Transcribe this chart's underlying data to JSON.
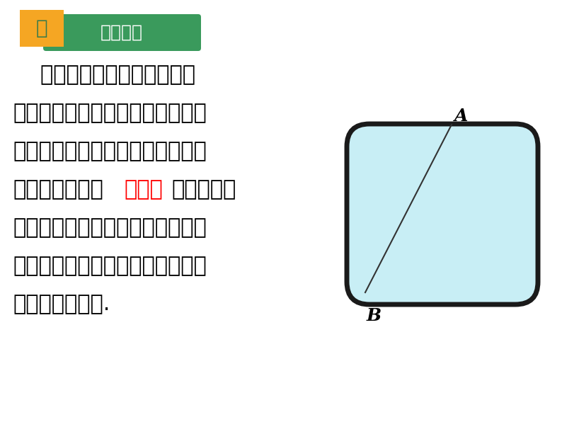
{
  "bg_color": "#ffffff",
  "title_box_color": "#3a9a5c",
  "title_box_text": "趣味探索",
  "title_box_text_color": "#ffffff",
  "num_box_color": "#f5a623",
  "num_box_text": "二",
  "num_box_text_color": "#3a7a4a",
  "body_lines": [
    "    小明有一块小木板，他想知",
    "道它的上下边缘是否平行，于是他",
    "在两个边缘之间画了一条线段；小",
    "明身边只有一个量角器，他通过测",
    "量某些角的大小就能知道这个木板",
    "的上下边缘是否平行，让我们来看",
    "看他是怎样做的."
  ],
  "red_word": "量角器",
  "red_color": "#ff0000",
  "body_color": "#000000",
  "board_fill": "#c8eef5",
  "board_stroke": "#1a1a1a",
  "line_color": "#333333",
  "label_A": "A",
  "label_B": "B",
  "label_color": "#000000"
}
